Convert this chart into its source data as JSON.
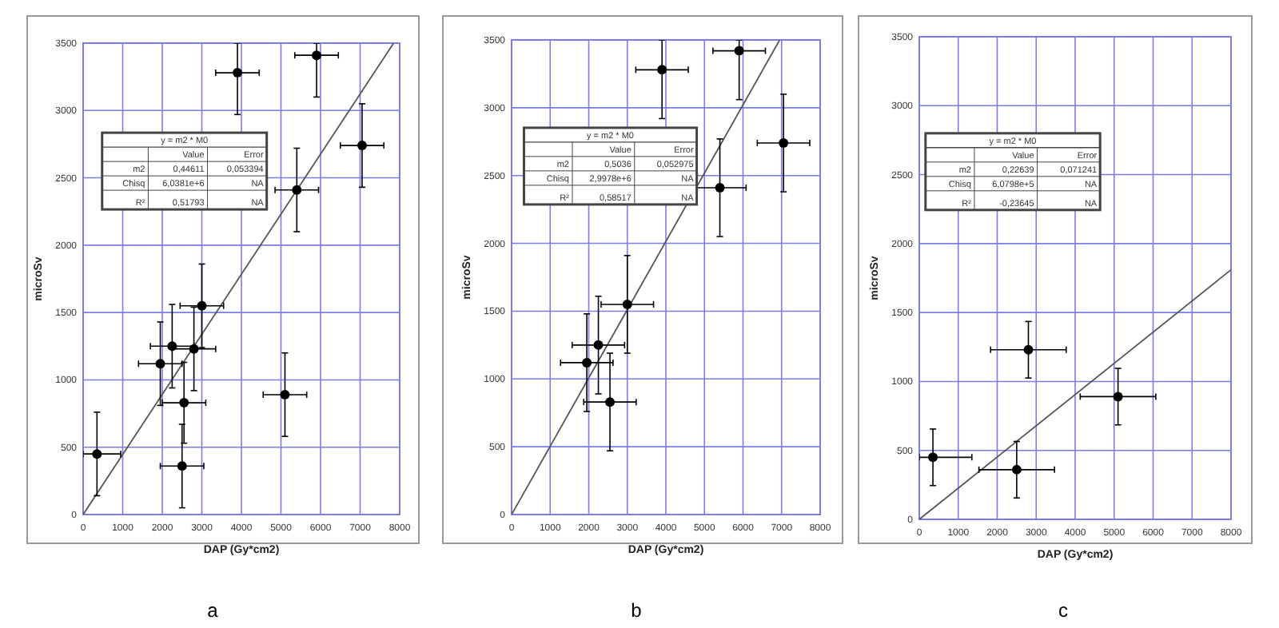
{
  "chart_data": [
    {
      "type": "scatter",
      "xlabel": "DAP (Gy*cm2)",
      "ylabel": "microSv",
      "xlim": [
        0,
        8000
      ],
      "ylim": [
        0,
        3500
      ],
      "xticks": [
        0,
        1000,
        2000,
        3000,
        4000,
        5000,
        6000,
        7000,
        8000
      ],
      "yticks": [
        0,
        500,
        1000,
        1500,
        2000,
        2500,
        3000,
        3500
      ],
      "grid": true,
      "marker": "circle",
      "annotations": [
        "y = m2 * M0",
        "Value",
        "Error",
        "m2",
        "0,44611",
        "0,053394",
        "Chisq",
        "6,0381e+6",
        "NA",
        "R²",
        "0,51793",
        "NA",
        "a"
      ],
      "series": [
        {
          "color": "#000000",
          "x": [
            350,
            1950,
            2250,
            2800,
            3000,
            2550,
            2500,
            5100,
            5400,
            3900,
            5900,
            7050
          ],
          "values": [
            450,
            1120,
            1250,
            1230,
            1550,
            830,
            360,
            890,
            2410,
            3280,
            3410,
            2740
          ],
          "errors": [
            310,
            310,
            310,
            310,
            310,
            300,
            310,
            310,
            310,
            [
              2970,
              3500
            ],
            [
              3100,
              3500
            ],
            310
          ],
          "xerrors": [
            [
              0,
              950
            ],
            550,
            550,
            550,
            550,
            550,
            550,
            550,
            550,
            550,
            550,
            550
          ]
        },
        {
          "type": "line",
          "color": "#555555",
          "line_style": "solid",
          "marker": "none",
          "x": [
            0,
            7846
          ],
          "values": [
            0,
            3500
          ]
        }
      ]
    },
    {
      "type": "scatter",
      "xlabel": "DAP (Gy*cm2)",
      "ylabel": "microSv",
      "xlim": [
        0,
        8000
      ],
      "ylim": [
        0,
        3500
      ],
      "xticks": [
        0,
        1000,
        2000,
        3000,
        4000,
        5000,
        6000,
        7000,
        8000
      ],
      "yticks": [
        0,
        500,
        1000,
        1500,
        2000,
        2500,
        3000,
        3500
      ],
      "grid": true,
      "marker": "circle",
      "annotations": [
        "y = m2 * M0",
        "Value",
        "Error",
        "m2",
        "0,5036",
        "0,052975",
        "Chisq",
        "2,9978e+6",
        "NA",
        "R²",
        "0,58517",
        "NA",
        "b"
      ],
      "series": [
        {
          "color": "#000000",
          "x": [
            1950,
            2250,
            2550,
            3000,
            5400,
            3900,
            5900,
            7050
          ],
          "values": [
            1120,
            1250,
            830,
            1550,
            2410,
            3280,
            3420,
            2740
          ],
          "errors": [
            360,
            360,
            360,
            360,
            360,
            [
              2920,
              3500
            ],
            [
              3060,
              3500
            ],
            360
          ],
          "xerrors": [
            680,
            680,
            680,
            680,
            680,
            680,
            680,
            680
          ]
        },
        {
          "type": "line",
          "color": "#555555",
          "line_style": "solid",
          "marker": "none",
          "x": [
            0,
            6950
          ],
          "values": [
            0,
            3500
          ]
        }
      ]
    },
    {
      "type": "scatter",
      "xlabel": "DAP (Gy*cm2)",
      "ylabel": "microSv",
      "xlim": [
        0,
        8000
      ],
      "ylim": [
        0,
        3500
      ],
      "xticks": [
        0,
        1000,
        2000,
        3000,
        4000,
        5000,
        6000,
        7000,
        8000
      ],
      "yticks": [
        0,
        500,
        1000,
        1500,
        2000,
        2500,
        3000,
        3500
      ],
      "grid": true,
      "marker": "circle",
      "annotations": [
        "y = m2 * M0",
        "Value",
        "Error",
        "m2",
        "0,22639",
        "0,071241",
        "Chisq",
        "6,0798e+5",
        "NA",
        "R²",
        "-0,23645",
        "NA",
        "c"
      ],
      "series": [
        {
          "color": "#000000",
          "x": [
            350,
            2800,
            2500,
            5100
          ],
          "values": [
            450,
            1230,
            360,
            890
          ],
          "errors": [
            205,
            205,
            205,
            205
          ],
          "xerrors": [
            [
              0,
              1350
            ],
            970,
            970,
            970
          ]
        },
        {
          "type": "line",
          "color": "#555555",
          "line_style": "solid",
          "marker": "none",
          "x": [
            0,
            8000
          ],
          "values": [
            0,
            1810
          ]
        }
      ]
    }
  ]
}
